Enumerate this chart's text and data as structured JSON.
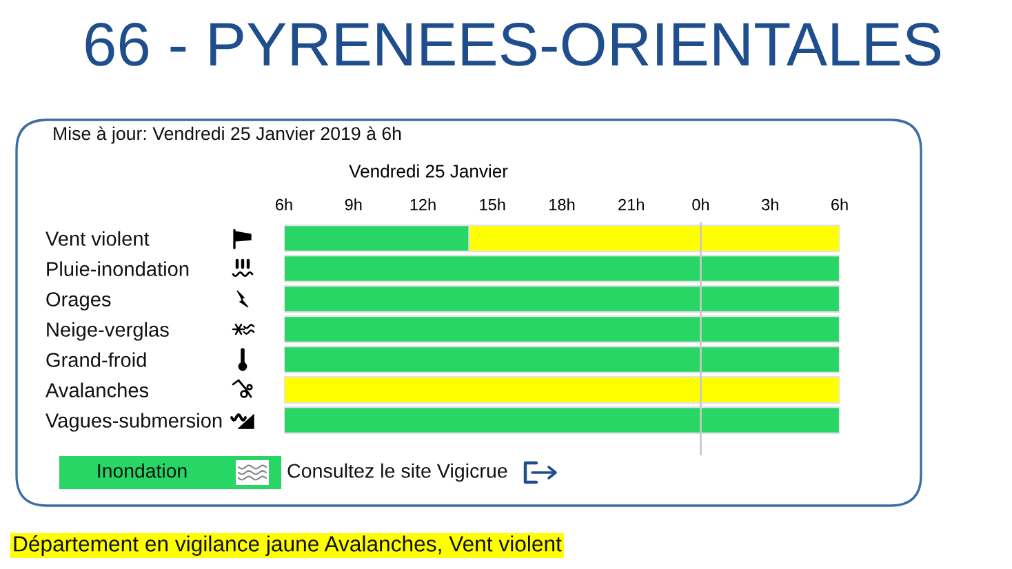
{
  "chart_data": {
    "type": "bar",
    "orientation": "horizontal",
    "title": "66 - PYRENEES-ORIENTALES",
    "subtitle": "Mise à jour: Vendredi 25 Janvier 2019 à 6h",
    "xlabel": "Vendredi 25 Janvier",
    "categories": [
      "Vent violent",
      "Pluie-inondation",
      "Orages",
      "Neige-verglas",
      "Grand-froid",
      "Avalanches",
      "Vagues-submersion"
    ],
    "series": [
      {
        "color": "#27d664",
        "base": [
          6,
          6,
          6,
          6,
          6,
          null,
          6
        ],
        "values": [
          8,
          24,
          24,
          24,
          24,
          null,
          24
        ]
      },
      {
        "color": "#ffff00",
        "base": [
          14,
          null,
          null,
          null,
          null,
          6,
          null
        ],
        "values": [
          16,
          null,
          null,
          null,
          null,
          24,
          null
        ]
      }
    ],
    "xlim": [
      6,
      30
    ],
    "xticks": [
      {
        "value": 6,
        "label": "6h"
      },
      {
        "value": 9,
        "label": "9h"
      },
      {
        "value": 12,
        "label": "12h"
      },
      {
        "value": 15,
        "label": "15h"
      },
      {
        "value": 18,
        "label": "18h"
      },
      {
        "value": 21,
        "label": "21h"
      }
    ],
    "x2lim": [
      -18,
      6
    ],
    "x2ticks": [
      {
        "value": 0,
        "label": "0h"
      },
      {
        "value": 3,
        "label": "3h"
      },
      {
        "value": 6,
        "label": "6h"
      }
    ],
    "ref_lines": [
      {
        "axis": "x",
        "value": 24,
        "color": "#c8c8c8"
      }
    ],
    "annotations": [
      "Inondation",
      "Consultez le site Vigicrue",
      "Département en vigilance jaune Avalanches, Vent violent"
    ]
  }
}
